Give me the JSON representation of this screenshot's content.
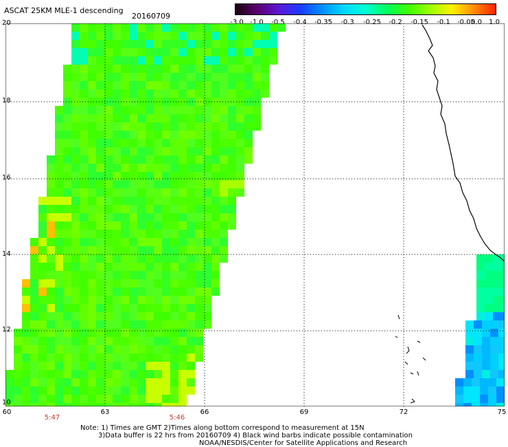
{
  "header": {
    "title": "ASCAT 25KM MLE-1 descending",
    "date": "20160709"
  },
  "colorbar": {
    "labels": [
      "-3.0",
      "-1.0",
      "-0.5",
      "-0.4",
      "-0.35",
      "-0.3",
      "-0.25",
      "-0.2",
      "-0.15",
      "-0.1",
      "-0.05",
      "0.0",
      "1.0"
    ],
    "colors": [
      "#1a0010",
      "#5b0070",
      "#5a18d8",
      "#1a3cff",
      "#0090ff",
      "#00d8ff",
      "#00ffd2",
      "#00ff5a",
      "#40ff00",
      "#a0ff00",
      "#fff000",
      "#ff8a00",
      "#ff2000"
    ]
  },
  "map": {
    "lat_labels": [
      "20",
      "18",
      "16",
      "14",
      "12",
      "10"
    ],
    "lon_labels": [
      "60",
      "63",
      "66",
      "69",
      "72",
      "75"
    ],
    "time_labels": [
      "5:47",
      "5:46"
    ],
    "time_color": "#c0392b"
  },
  "footer": {
    "line1": "Note: 1) Times are GMT 2)Times along bottom correspond to measurement at 15N",
    "line2": "3)Data buffer is 22 hrs from 20160709 4) Black wind barbs indicate possible contamination",
    "line3": "NOAA/NESDIS/Center for Satellite Applications and Research"
  }
}
